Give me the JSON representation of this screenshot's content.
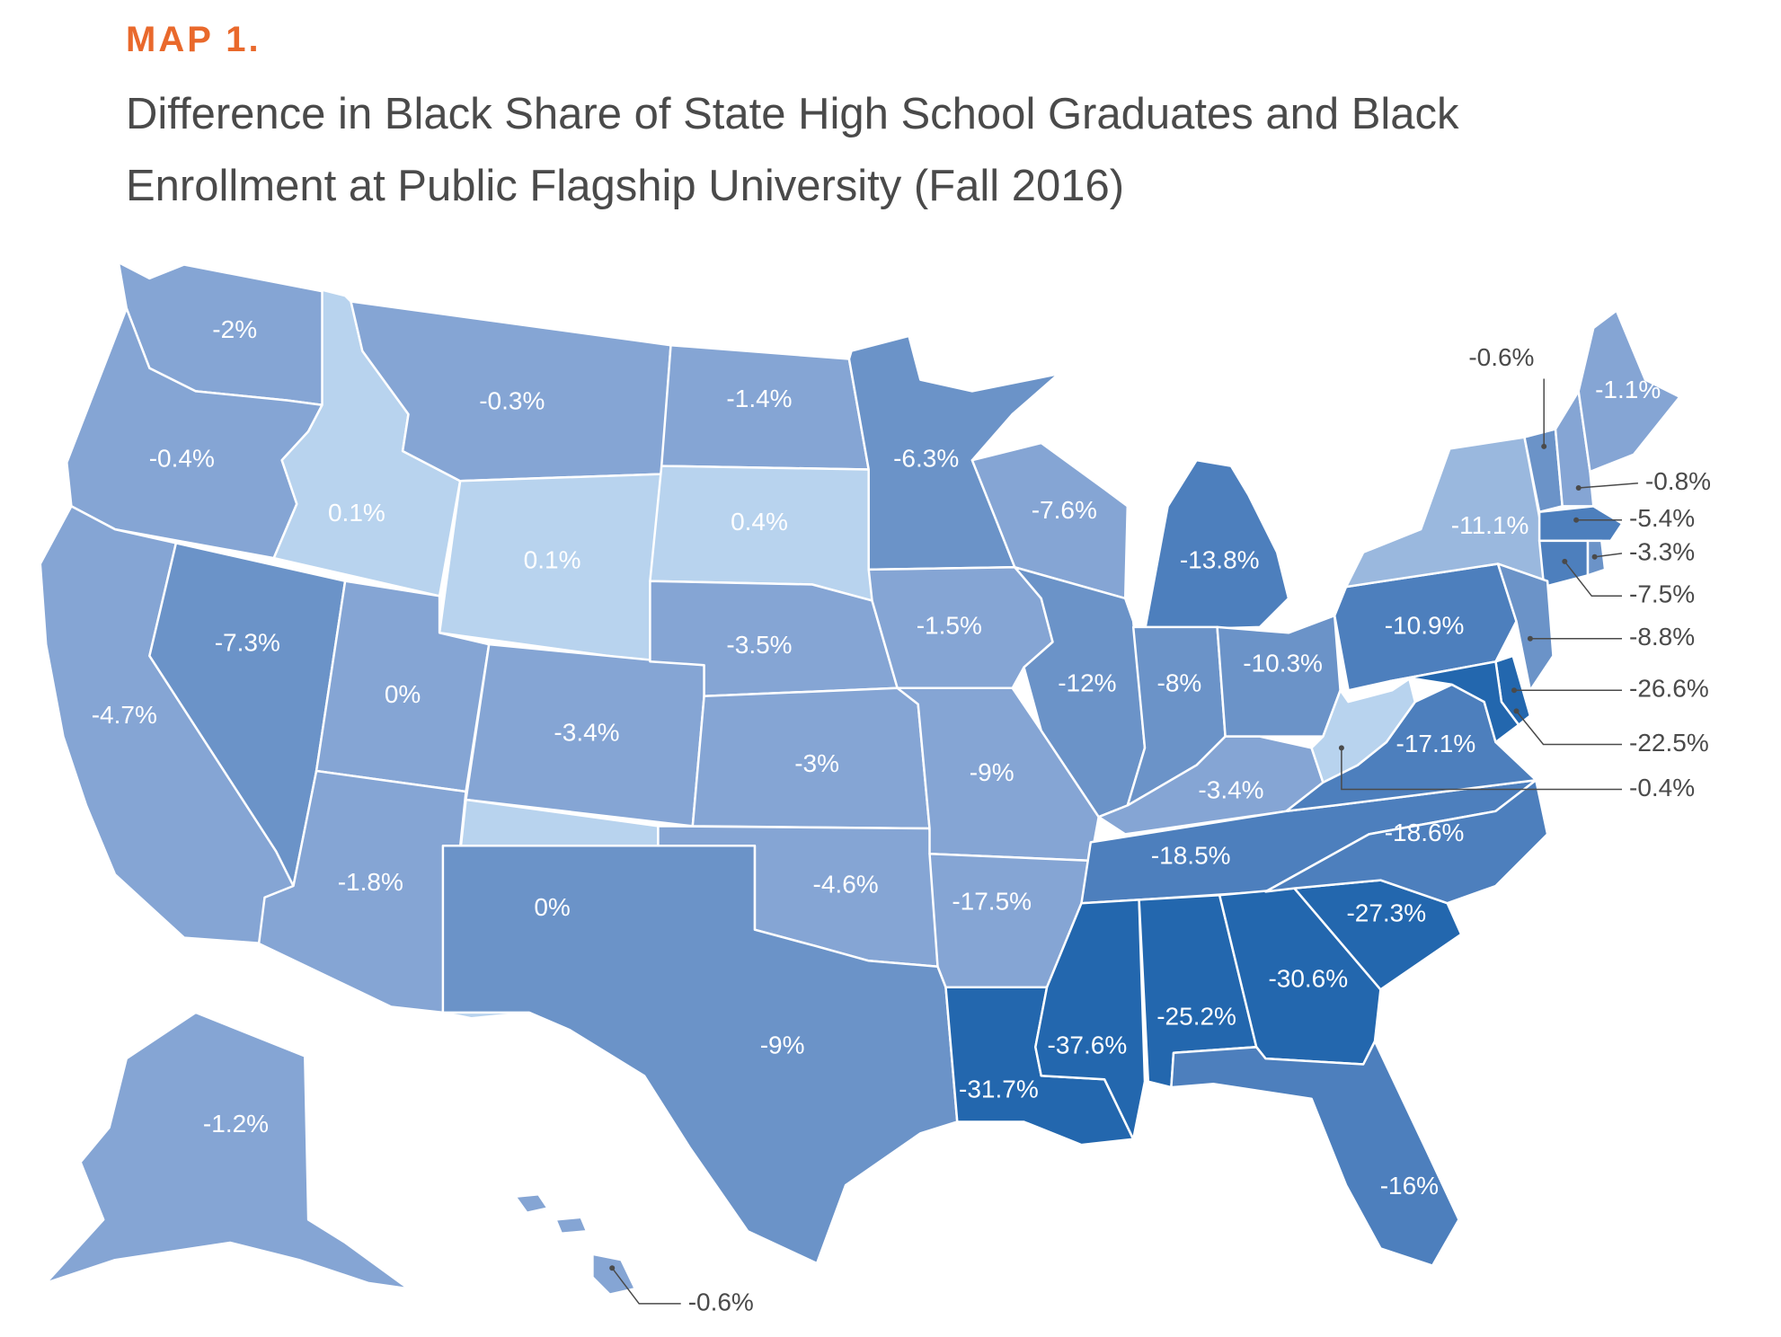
{
  "header": {
    "kicker": "MAP 1.",
    "title_line1": "Difference in Black Share of State High School Graduates and Black",
    "title_line2": "Enrollment at Public Flagship University (Fall 2016)"
  },
  "colors": {
    "tier0": "#b8d3ee",
    "tier1": "#85a5d4",
    "tier2": "#6b93c8",
    "tier3": "#4d7fbd",
    "tier4": "#2367ae",
    "ny": "#9ab8de",
    "label_light": "#ffffff",
    "label_dark": "#4a4a4a"
  },
  "map_data": {
    "type": "choropleth",
    "states": [
      {
        "id": "WA",
        "value": "-2%"
      },
      {
        "id": "OR",
        "value": "-0.4%"
      },
      {
        "id": "CA",
        "value": "-4.7%"
      },
      {
        "id": "NV",
        "value": "-7.3%"
      },
      {
        "id": "ID",
        "value": "0.1%"
      },
      {
        "id": "MT",
        "value": "-0.3%"
      },
      {
        "id": "WY",
        "value": "0.1%"
      },
      {
        "id": "UT",
        "value": "0%"
      },
      {
        "id": "AZ",
        "value": "-1.8%"
      },
      {
        "id": "CO",
        "value": "-3.4%"
      },
      {
        "id": "NM",
        "value": "0%"
      },
      {
        "id": "ND",
        "value": "-1.4%"
      },
      {
        "id": "SD",
        "value": "0.4%"
      },
      {
        "id": "NE",
        "value": "-3.5%"
      },
      {
        "id": "KS",
        "value": "-3%"
      },
      {
        "id": "OK",
        "value": "-4.6%"
      },
      {
        "id": "TX",
        "value": "-9%"
      },
      {
        "id": "MN",
        "value": "-6.3%"
      },
      {
        "id": "IA",
        "value": "-1.5%"
      },
      {
        "id": "MO",
        "value": "-9%"
      },
      {
        "id": "AR",
        "value": "-17.5%"
      },
      {
        "id": "LA",
        "value": "-31.7%"
      },
      {
        "id": "WI",
        "value": "-7.6%"
      },
      {
        "id": "IL",
        "value": "-12%"
      },
      {
        "id": "MI",
        "value": "-13.8%"
      },
      {
        "id": "IN",
        "value": "-8%"
      },
      {
        "id": "OH",
        "value": "-10.3%"
      },
      {
        "id": "KY",
        "value": "-3.4%"
      },
      {
        "id": "TN",
        "value": "-18.5%"
      },
      {
        "id": "MS",
        "value": "-37.6%"
      },
      {
        "id": "AL",
        "value": "-25.2%"
      },
      {
        "id": "GA",
        "value": "-30.6%"
      },
      {
        "id": "FL",
        "value": "-16%"
      },
      {
        "id": "SC",
        "value": "-27.3%"
      },
      {
        "id": "NC",
        "value": "-18.6%"
      },
      {
        "id": "VA",
        "value": "-17.1%"
      },
      {
        "id": "WV",
        "value": "-0.4%"
      },
      {
        "id": "PA",
        "value": "-10.9%"
      },
      {
        "id": "NY",
        "value": "-11.1%"
      },
      {
        "id": "VT",
        "value": "-0.6%"
      },
      {
        "id": "NH",
        "value": "-0.8%"
      },
      {
        "id": "ME",
        "value": "-1.1%"
      },
      {
        "id": "MA",
        "value": "-5.4%"
      },
      {
        "id": "RI",
        "value": "-3.3%"
      },
      {
        "id": "CT",
        "value": "-7.5%"
      },
      {
        "id": "NJ",
        "value": "-8.8%"
      },
      {
        "id": "DE",
        "value": "-26.6%"
      },
      {
        "id": "MD",
        "value": "-22.5%"
      },
      {
        "id": "AK",
        "value": "-1.2%"
      },
      {
        "id": "HI",
        "value": "-0.6%"
      }
    ]
  }
}
